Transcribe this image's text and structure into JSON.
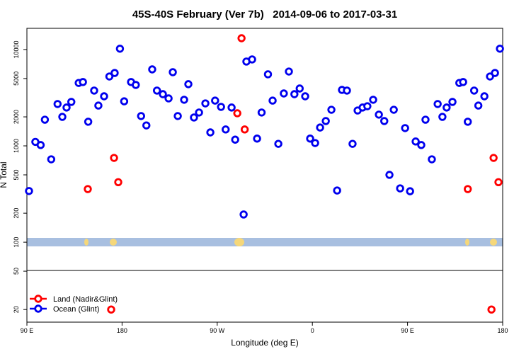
{
  "chart_data": {
    "type": "scatter",
    "title": "45S-40S February (Ver 7b)   2014-09-06 to 2017-03-31",
    "xlabel": "Longitude (deg E)",
    "ylabel": "N Total",
    "log_y": true,
    "legend": "lower left",
    "xlim": [
      90,
      540
    ],
    "ylim": [
      14.8,
      16600
    ],
    "xticks": [
      {
        "value": 90,
        "label": "90 E"
      },
      180,
      {
        "value": 270,
        "label": "90 W"
      },
      {
        "value": 360,
        "label": "0"
      },
      {
        "value": 450,
        "label": "90 E"
      },
      {
        "value": 540,
        "label": "180"
      }
    ],
    "yticks": [
      20,
      50,
      100,
      200,
      500,
      1000,
      2000,
      5000,
      10000
    ],
    "series": [
      {
        "name": "Land (Nadir&Glint)",
        "color": "#ff0000",
        "x": [
          147.6,
          172.4,
          176.4,
          289,
          293,
          296,
          169.7,
          507,
          531.4,
          536,
          529.4
        ],
        "values": [
          356,
          750,
          420,
          2180,
          13100,
          1480,
          20,
          356,
          750,
          420,
          20
        ]
      },
      {
        "name": "Ocean (Glint)",
        "color": "#0000ee",
        "x": [
          92,
          98,
          103,
          107,
          113,
          119,
          123.5,
          127.5,
          132,
          139,
          143,
          148,
          153.6,
          157.6,
          163,
          168,
          173,
          178,
          182,
          188.5,
          193,
          198,
          203,
          208.5,
          213,
          218.6,
          224,
          228,
          232.7,
          238.7,
          242.7,
          248,
          252.8,
          258.8,
          263.5,
          268,
          273.6,
          278,
          283.6,
          287,
          295,
          297.6,
          303,
          307.7,
          312,
          318,
          322.4,
          327.8,
          333,
          337.8,
          343,
          348,
          353.2,
          357.9,
          362.6,
          367.3,
          372.7,
          378,
          383.4,
          388,
          392.7,
          398,
          402.8,
          407.5,
          412,
          417.5,
          422.9,
          428,
          432.9,
          437,
          443,
          447.7,
          452.4,
          457.7,
          463,
          467,
          473,
          478.5,
          483,
          487,
          492.5,
          499,
          502.6,
          507,
          513,
          517,
          522.7,
          528,
          532.7,
          537.4
        ],
        "values": [
          340,
          1100,
          1020,
          1870,
          725,
          2720,
          2000,
          2500,
          2860,
          4500,
          4600,
          1780,
          3750,
          2620,
          3270,
          5250,
          5710,
          10200,
          2900,
          4600,
          4290,
          2040,
          1630,
          6220,
          3750,
          3440,
          3110,
          5820,
          2040,
          3010,
          4370,
          1970,
          2220,
          2760,
          1380,
          2950,
          2540,
          1480,
          2500,
          1160,
          194,
          7500,
          7890,
          1190,
          2220,
          5530,
          2950,
          1050,
          3500,
          5910,
          3440,
          3940,
          3270,
          1190,
          1070,
          1550,
          1810,
          2370,
          344,
          3810,
          3750,
          1050,
          2330,
          2500,
          2580,
          3010,
          2110,
          1810,
          500,
          2370,
          362,
          1530,
          338,
          1110,
          1020,
          1870,
          725,
          2720,
          2000,
          2500,
          2860,
          4500,
          4600,
          1780,
          3750,
          2620,
          3270,
          5250,
          5710,
          10200
        ]
      }
    ]
  }
}
